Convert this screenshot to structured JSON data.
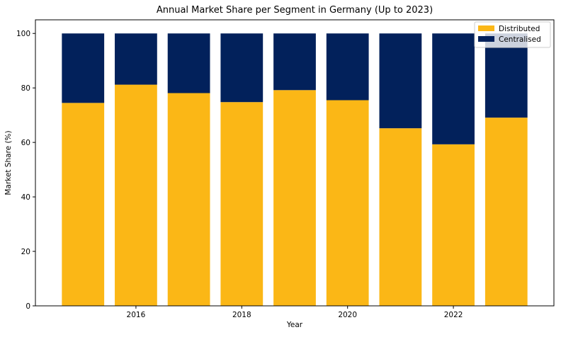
{
  "chart_data": {
    "type": "bar",
    "stacked": true,
    "title": "Annual Market Share per Segment in Germany (Up to 2023)",
    "xlabel": "Year",
    "ylabel": "Market Share (%)",
    "categories": [
      2015,
      2016,
      2017,
      2018,
      2019,
      2020,
      2021,
      2022,
      2023
    ],
    "series": [
      {
        "name": "Distributed",
        "color": "#fbb716",
        "values": [
          74.5,
          81.2,
          78.1,
          74.8,
          79.2,
          75.5,
          65.2,
          59.3,
          69.1
        ]
      },
      {
        "name": "Centralised",
        "color": "#02215b",
        "values": [
          25.5,
          18.8,
          21.9,
          25.2,
          20.8,
          24.5,
          34.8,
          40.7,
          30.9
        ]
      }
    ],
    "xticks": [
      2016,
      2018,
      2020,
      2022
    ],
    "xtick_labels": [
      "2016",
      "2018",
      "2020",
      "2022"
    ],
    "yticks": [
      0,
      20,
      40,
      60,
      80,
      100
    ],
    "ytick_labels": [
      "0",
      "20",
      "40",
      "60",
      "80",
      "100"
    ],
    "xlim": [
      2014.1,
      2023.9
    ],
    "ylim": [
      0,
      105
    ],
    "grid": false,
    "legend_position": "top-right"
  }
}
